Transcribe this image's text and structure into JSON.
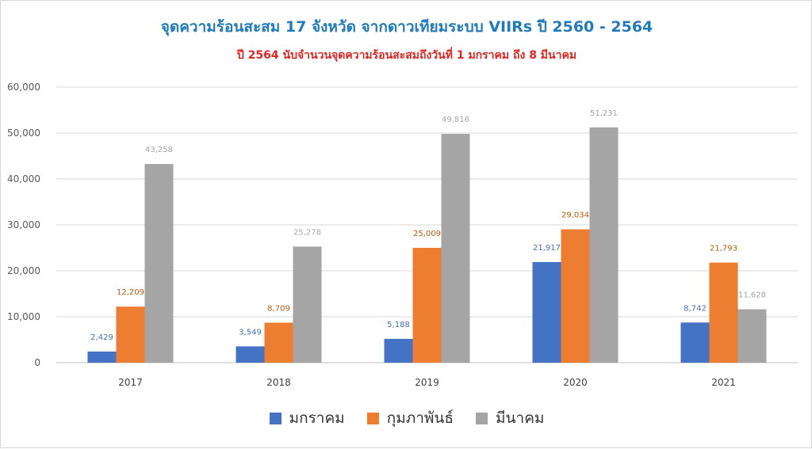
{
  "chart_data": {
    "type": "bar",
    "title": "จุดความร้อนสะสม 17 จังหวัด จากดาวเทียมระบบ VIIRs ปี 2560 - 2564",
    "subtitle": "ปี 2564 นับจำนวนจุดความร้อนสะสมถึงวันที่ 1 มกราคม ถึง 8 มีนาคม",
    "categories": [
      "2017",
      "2018",
      "2019",
      "2020",
      "2021"
    ],
    "series": [
      {
        "name": "มกราคม",
        "color": "#4472c4",
        "label_color": "#4472c4",
        "values": [
          2429,
          3549,
          5188,
          21917,
          8742
        ]
      },
      {
        "name": "กุมภาพันธ์",
        "color": "#ed7d31",
        "label_color": "#c55a11",
        "values": [
          12209,
          8709,
          25009,
          29034,
          21793
        ]
      },
      {
        "name": "มีนาคม",
        "color": "#a5a5a5",
        "label_color": "#a5a5a5",
        "values": [
          43258,
          25278,
          49816,
          51231,
          11628
        ]
      }
    ],
    "ylim": [
      0,
      60000
    ],
    "yticks": [
      "0",
      "10,000",
      "20,000",
      "30,000",
      "40,000",
      "50,000",
      "60,000"
    ],
    "grid": true,
    "legend_position": "bottom"
  }
}
